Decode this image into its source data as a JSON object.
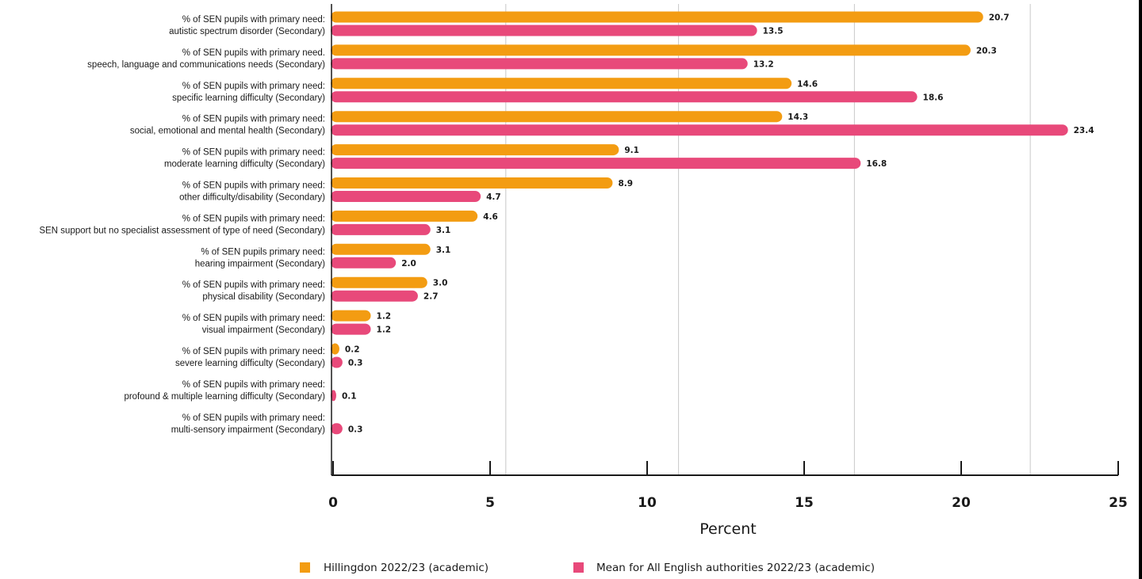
{
  "chart_data": {
    "type": "bar",
    "orientation": "horizontal",
    "categories": [
      [
        "% of SEN pupils with primary need:",
        "autistic spectrum disorder (Secondary)"
      ],
      [
        "% of SEN pupils with primary need.",
        "speech, language and communications needs (Secondary)"
      ],
      [
        "% of SEN pupils with primary need:",
        "specific learning difficulty (Secondary)"
      ],
      [
        "% of SEN pupils with primary need:",
        "social, emotional and mental health (Secondary)"
      ],
      [
        "% of SEN pupils with primary need:",
        "moderate learning difficulty (Secondary)"
      ],
      [
        "% of SEN pupils with primary need:",
        "other difficulty/disability (Secondary)"
      ],
      [
        "% of SEN pupils with primary need:",
        "SEN support but no specialist assessment of type of need (Secondary)"
      ],
      [
        "% of SEN pupils primary need:",
        "hearing impairment (Secondary)"
      ],
      [
        "% of SEN pupils with primary need:",
        "physical disability (Secondary)"
      ],
      [
        "% of SEN pupils with primary need:",
        "visual impairment (Secondary)"
      ],
      [
        "% of SEN pupils with primary need:",
        "severe learning difficulty (Secondary)"
      ],
      [
        "% of SEN pupils with primary need:",
        "profound & multiple learning difficulty (Secondary)"
      ],
      [
        "% of SEN pupils with primary need:",
        "multi-sensory impairment (Secondary)"
      ]
    ],
    "series": [
      {
        "name": "Hillingdon 2022/23 (academic)",
        "color": "#F39C12",
        "values": [
          20.7,
          20.3,
          14.6,
          14.3,
          9.1,
          8.9,
          4.6,
          3.1,
          3.0,
          1.2,
          0.2,
          null,
          null
        ],
        "labels": [
          "20.7",
          "20.3",
          "14.6",
          "14.3",
          "9.1",
          "8.9",
          "4.6",
          "3.1",
          "3.0",
          "1.2",
          "0.2",
          "",
          ""
        ]
      },
      {
        "name": "Mean for All English authorities 2022/23 (academic)",
        "color": "#E8497A",
        "values": [
          13.5,
          13.2,
          18.6,
          23.4,
          16.8,
          4.7,
          3.1,
          2.0,
          2.7,
          1.2,
          0.3,
          0.1,
          0.3
        ],
        "labels": [
          "13.5",
          "13.2",
          "18.6",
          "23.4",
          "16.8",
          "4.7",
          "3.1",
          "2.0",
          "2.7",
          "1.2",
          "0.3",
          "0.1",
          "0.3"
        ]
      }
    ],
    "xlabel": "Percent",
    "xlim": [
      0,
      25
    ],
    "xticks": [
      0,
      5,
      10,
      15,
      20,
      25
    ],
    "xtick_labels": [
      "0",
      "5",
      "10",
      "15",
      "20",
      "25"
    ],
    "grid": true,
    "legend_position": "bottom"
  }
}
